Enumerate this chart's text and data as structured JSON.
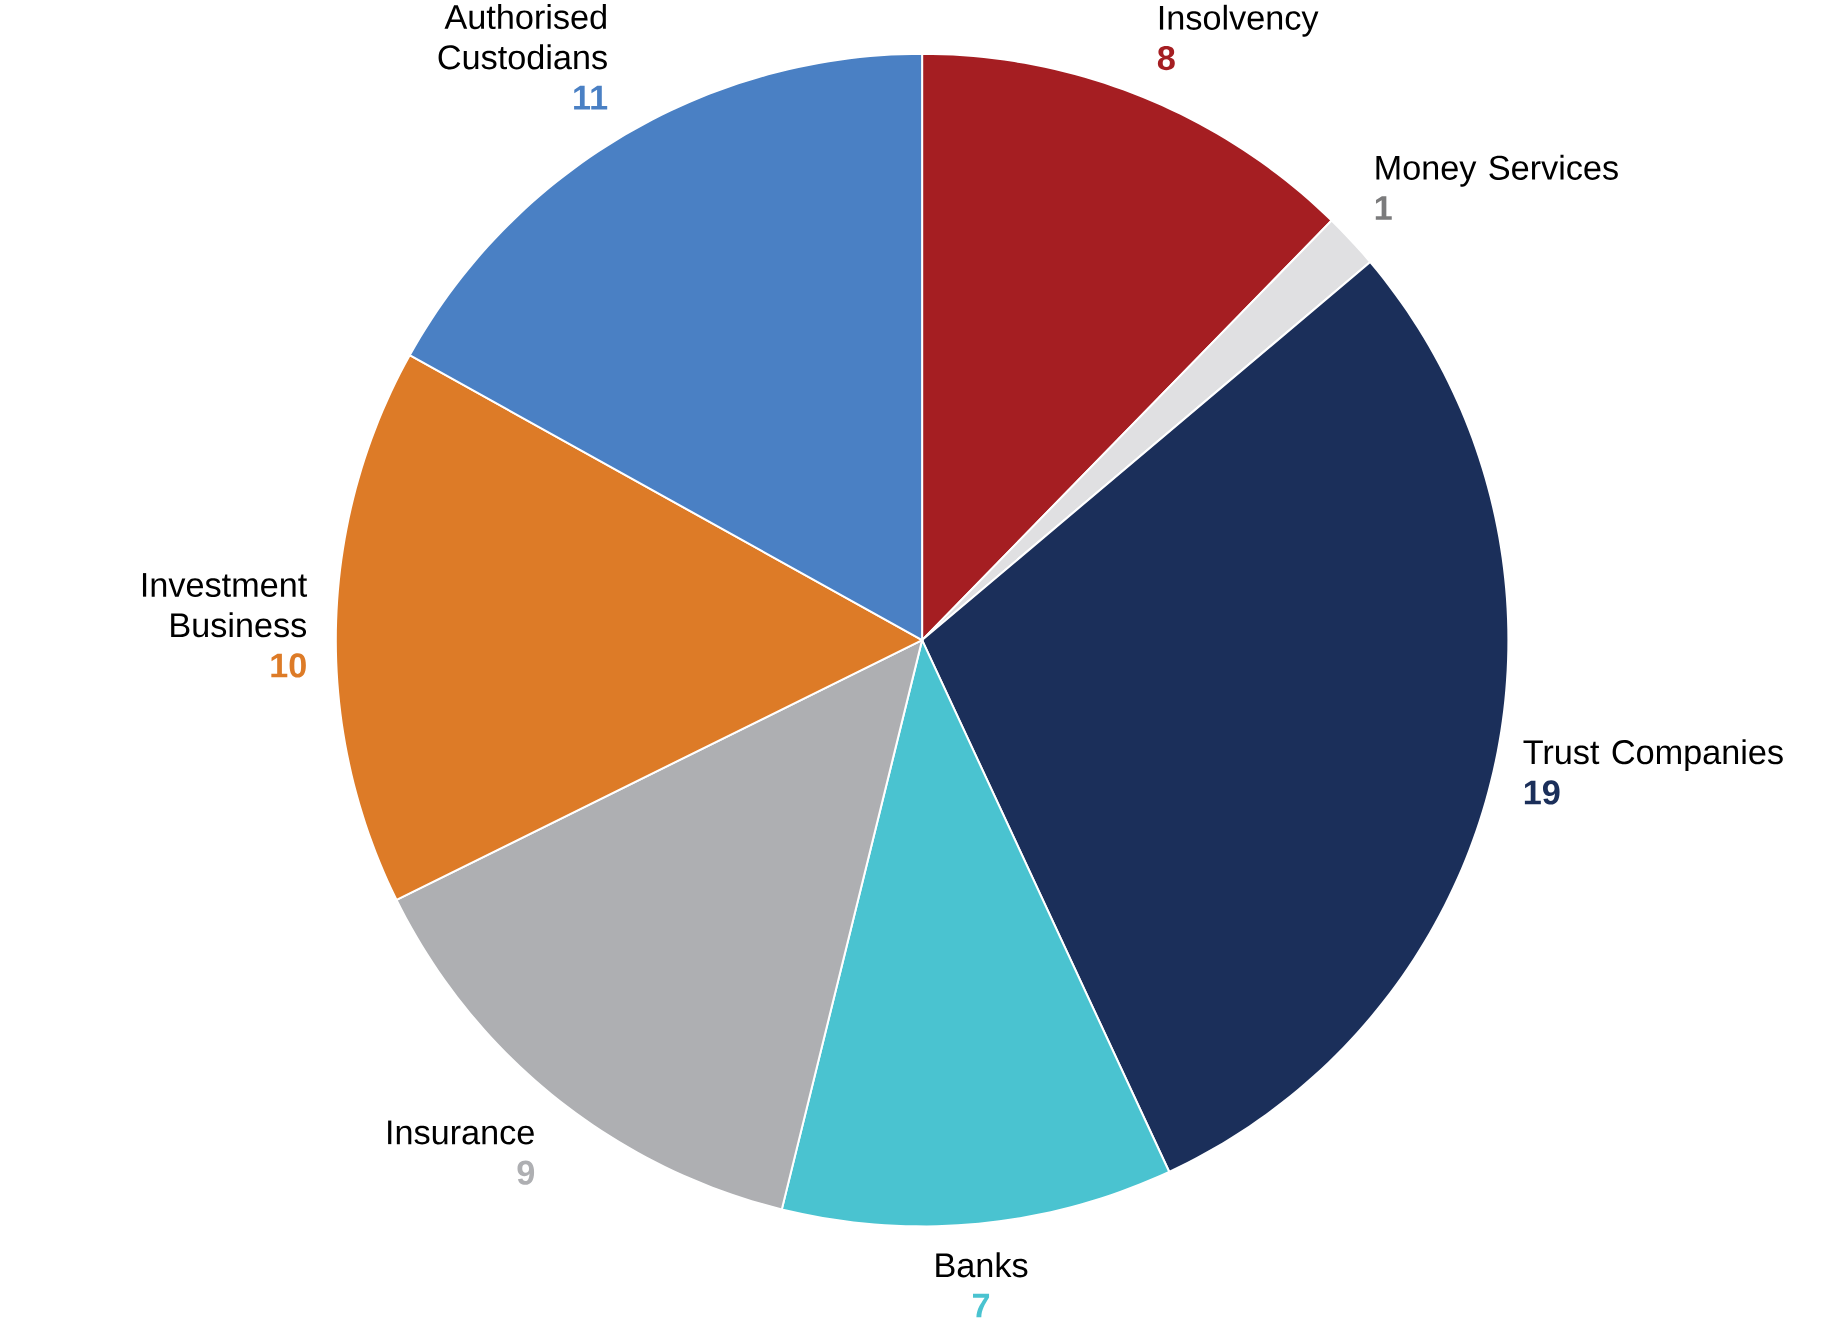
{
  "chart_data": {
    "type": "pie",
    "categories": [
      "Insolvency",
      "Money Services",
      "Trust Companies",
      "Banks",
      "Insurance",
      "Investment Business",
      "Authorised Custodians"
    ],
    "values": [
      8,
      1,
      19,
      7,
      9,
      10,
      11
    ],
    "colors": [
      "#a51e22",
      "#e0e0e2",
      "#1b2f5a",
      "#4ac3d0",
      "#aeafb2",
      "#dd7b27",
      "#4a80c4"
    ],
    "data_labels": true
  }
}
